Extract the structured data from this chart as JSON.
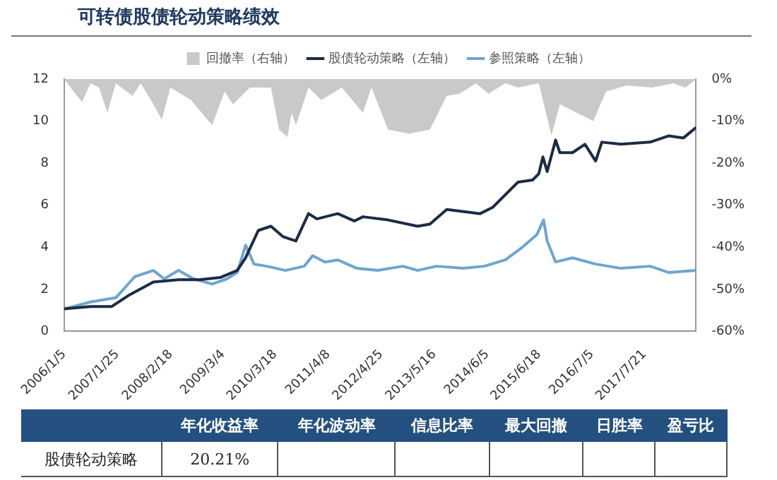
{
  "chart_data": {
    "type": "line",
    "title": "可转债股债轮动策略绩效",
    "legend": "top",
    "xlim": [
      "2006-01-05",
      "2018-08-01"
    ],
    "xticks": [
      {
        "value": "2006-01-05",
        "label": "2006/1/5"
      },
      {
        "value": "2007-01-25",
        "label": "2007/1/25"
      },
      {
        "value": "2008-02-18",
        "label": "2008/2/18"
      },
      {
        "value": "2009-03-04",
        "label": "2009/3/4"
      },
      {
        "value": "2010-03-18",
        "label": "2010/3/18"
      },
      {
        "value": "2011-04-08",
        "label": "2011/4/8"
      },
      {
        "value": "2012-04-25",
        "label": "2012/4/25"
      },
      {
        "value": "2013-05-16",
        "label": "2013/5/16"
      },
      {
        "value": "2014-06-05",
        "label": "2014/6/5"
      },
      {
        "value": "2015-06-18",
        "label": "2015/6/18"
      },
      {
        "value": "2016-07-05",
        "label": "2016/7/5"
      },
      {
        "value": "2017-07-21",
        "label": "2017/7/21"
      }
    ],
    "ylim": [
      0,
      12
    ],
    "yticks": [
      0,
      2,
      4,
      6,
      8,
      10,
      12
    ],
    "y2lim": [
      -60,
      0
    ],
    "y2ticks": [
      {
        "value": -60,
        "label": "-60%"
      },
      {
        "value": -50,
        "label": "-50%"
      },
      {
        "value": -40,
        "label": "-40%"
      },
      {
        "value": -30,
        "label": "-30%"
      },
      {
        "value": -20,
        "label": "-20%"
      },
      {
        "value": -10,
        "label": "-10%"
      },
      {
        "value": 0,
        "label": "0%"
      }
    ],
    "series": [
      {
        "name": "回撤率（右轴）",
        "type": "area",
        "axis": "y2",
        "color": "#c9c9c9",
        "x": [
          "2006-01-05",
          "2006-03-15",
          "2006-05-15",
          "2006-07-15",
          "2006-09-15",
          "2006-11-15",
          "2007-01-15",
          "2007-05-15",
          "2007-07-15",
          "2007-10-15",
          "2007-12-15",
          "2008-02-15",
          "2008-07-15",
          "2008-12-15",
          "2009-03-15",
          "2009-05-15",
          "2009-09-15",
          "2010-02-15",
          "2010-04-15",
          "2010-06-15",
          "2010-07-15",
          "2010-08-15",
          "2010-11-15",
          "2011-02-15",
          "2011-07-15",
          "2011-12-15",
          "2012-02-15",
          "2012-06-15",
          "2012-11-15",
          "2013-04-15",
          "2013-08-15",
          "2013-11-15",
          "2014-03-15",
          "2014-06-15",
          "2014-10-15",
          "2015-01-15",
          "2015-06-15",
          "2015-09-15",
          "2015-11-15",
          "2016-03-15",
          "2016-07-15",
          "2016-10-15",
          "2017-03-15",
          "2017-09-15",
          "2018-02-15",
          "2018-05-15",
          "2018-08-01"
        ],
        "values": [
          0,
          -3,
          -5.4,
          -1,
          -2,
          -8,
          -1,
          -4,
          -1,
          -6,
          -9.7,
          -2,
          -5,
          -11,
          -3,
          -6,
          -2,
          -2,
          -12,
          -13.8,
          -8,
          -11,
          -2,
          -5,
          -2,
          -8,
          -2,
          -12,
          -13,
          -12,
          -4,
          -3.5,
          -1,
          -3.5,
          -1,
          -2,
          -1,
          -13.4,
          -6,
          -8,
          -10,
          -3,
          -1.5,
          -2,
          -1,
          -2,
          0
        ]
      },
      {
        "name": "股债轮动策略（左轴）",
        "color": "#1c2b45",
        "x": [
          "2006-01-05",
          "2006-07-15",
          "2006-12-15",
          "2007-04-15",
          "2007-10-15",
          "2008-04-15",
          "2008-09-15",
          "2009-02-15",
          "2009-06-15",
          "2009-08-15",
          "2009-11-15",
          "2010-02-15",
          "2010-05-15",
          "2010-08-15",
          "2010-11-15",
          "2011-01-15",
          "2011-06-15",
          "2011-10-15",
          "2011-12-15",
          "2012-06-15",
          "2013-01-15",
          "2013-04-15",
          "2013-08-15",
          "2013-12-15",
          "2014-04-15",
          "2014-07-15",
          "2014-10-15",
          "2015-01-15",
          "2015-05-01",
          "2015-06-15",
          "2015-07-15",
          "2015-08-15",
          "2015-10-15",
          "2015-11-15",
          "2016-02-15",
          "2016-05-15",
          "2016-08-01",
          "2016-09-15",
          "2017-02-01",
          "2017-09-01",
          "2018-01-15",
          "2018-05-01",
          "2018-08-01"
        ],
        "values": [
          1.07,
          1.18,
          1.18,
          1.7,
          2.35,
          2.46,
          2.46,
          2.57,
          2.9,
          3.5,
          4.8,
          5.0,
          4.5,
          4.3,
          5.6,
          5.35,
          5.6,
          5.25,
          5.45,
          5.3,
          5.0,
          5.1,
          5.8,
          5.7,
          5.6,
          5.9,
          6.5,
          7.1,
          7.2,
          7.5,
          8.3,
          7.6,
          9.1,
          8.5,
          8.5,
          8.9,
          8.1,
          9.0,
          8.9,
          9.0,
          9.3,
          9.2,
          9.7
        ]
      },
      {
        "name": "参照策略（左轴）",
        "color": "#6fa5cf",
        "x": [
          "2006-01-05",
          "2006-07-15",
          "2007-01-15",
          "2007-06-01",
          "2007-10-15",
          "2008-01-01",
          "2008-04-15",
          "2008-08-01",
          "2008-12-15",
          "2009-04-01",
          "2009-06-15",
          "2009-08-15",
          "2009-10-15",
          "2010-01-15",
          "2010-06-01",
          "2010-10-15",
          "2010-12-15",
          "2011-03-15",
          "2011-06-15",
          "2011-11-01",
          "2012-04-01",
          "2012-10-01",
          "2013-01-15",
          "2013-06-01",
          "2013-12-15",
          "2014-05-15",
          "2014-10-15",
          "2015-02-15",
          "2015-06-01",
          "2015-07-20",
          "2015-08-15",
          "2015-10-15",
          "2016-02-15",
          "2016-08-01",
          "2017-02-01",
          "2017-09-01",
          "2018-01-15",
          "2018-08-01"
        ],
        "values": [
          1.07,
          1.4,
          1.6,
          2.6,
          2.9,
          2.5,
          2.9,
          2.5,
          2.25,
          2.5,
          2.8,
          4.1,
          3.2,
          3.1,
          2.9,
          3.1,
          3.6,
          3.3,
          3.4,
          3.0,
          2.9,
          3.1,
          2.9,
          3.1,
          3.0,
          3.1,
          3.4,
          4.0,
          4.6,
          5.3,
          4.3,
          3.3,
          3.5,
          3.2,
          3.0,
          3.1,
          2.8,
          2.9
        ]
      }
    ],
    "annotations": [
      "年化收益率",
      "年化波动率",
      "信息比率",
      "最大回撤",
      "日胜率",
      "盈亏比",
      "股债轮动策略",
      "20.21%"
    ]
  }
}
